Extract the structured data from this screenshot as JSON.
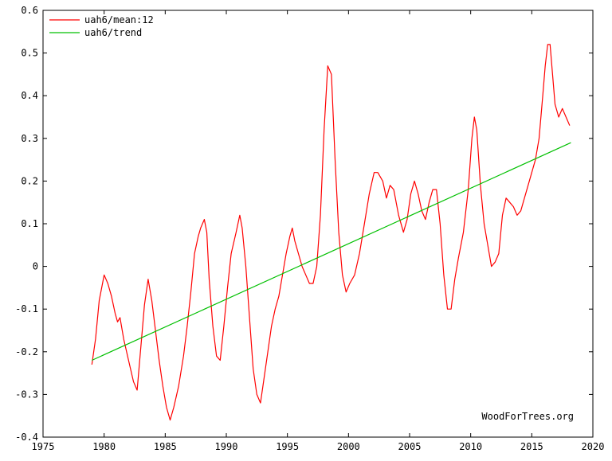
{
  "chart_data": {
    "type": "line",
    "title": "",
    "xlabel": "",
    "ylabel": "",
    "xlim": [
      1975,
      2020
    ],
    "ylim": [
      -0.4,
      0.6
    ],
    "x_ticks": [
      1975,
      1980,
      1985,
      1990,
      1995,
      2000,
      2005,
      2010,
      2015,
      2020
    ],
    "x_tick_labels": [
      "1975",
      "1980",
      "1985",
      "1990",
      "1995",
      "2000",
      "2005",
      "2010",
      "2015",
      "2020"
    ],
    "y_ticks": [
      -0.4,
      -0.3,
      -0.2,
      -0.1,
      0,
      0.1,
      0.2,
      0.3,
      0.4,
      0.5,
      0.6
    ],
    "y_tick_labels": [
      "-0.4",
      "-0.3",
      "-0.2",
      "-0.1",
      "0",
      "0.1",
      "0.2",
      "0.3",
      "0.4",
      "0.5",
      "0.6"
    ],
    "legend_position": "top-left",
    "series": [
      {
        "name": "uah6/mean:12",
        "color": "#ff0000",
        "points": [
          [
            1979.0,
            -0.23
          ],
          [
            1979.3,
            -0.17
          ],
          [
            1979.6,
            -0.08
          ],
          [
            1980.0,
            -0.02
          ],
          [
            1980.3,
            -0.04
          ],
          [
            1980.6,
            -0.07
          ],
          [
            1980.9,
            -0.11
          ],
          [
            1981.1,
            -0.13
          ],
          [
            1981.3,
            -0.12
          ],
          [
            1981.6,
            -0.17
          ],
          [
            1982.0,
            -0.22
          ],
          [
            1982.4,
            -0.27
          ],
          [
            1982.7,
            -0.29
          ],
          [
            1983.0,
            -0.19
          ],
          [
            1983.3,
            -0.09
          ],
          [
            1983.6,
            -0.03
          ],
          [
            1983.9,
            -0.08
          ],
          [
            1984.2,
            -0.15
          ],
          [
            1984.5,
            -0.22
          ],
          [
            1984.8,
            -0.28
          ],
          [
            1985.1,
            -0.33
          ],
          [
            1985.4,
            -0.36
          ],
          [
            1985.7,
            -0.33
          ],
          [
            1986.1,
            -0.28
          ],
          [
            1986.5,
            -0.21
          ],
          [
            1986.8,
            -0.14
          ],
          [
            1987.1,
            -0.06
          ],
          [
            1987.4,
            0.03
          ],
          [
            1987.7,
            0.07
          ],
          [
            1987.9,
            0.09
          ],
          [
            1988.2,
            0.11
          ],
          [
            1988.4,
            0.08
          ],
          [
            1988.6,
            -0.03
          ],
          [
            1988.9,
            -0.14
          ],
          [
            1989.2,
            -0.21
          ],
          [
            1989.5,
            -0.22
          ],
          [
            1989.8,
            -0.14
          ],
          [
            1990.1,
            -0.05
          ],
          [
            1990.4,
            0.03
          ],
          [
            1990.8,
            0.08
          ],
          [
            1991.1,
            0.12
          ],
          [
            1991.3,
            0.09
          ],
          [
            1991.6,
            0.0
          ],
          [
            1991.9,
            -0.12
          ],
          [
            1992.2,
            -0.24
          ],
          [
            1992.5,
            -0.3
          ],
          [
            1992.8,
            -0.32
          ],
          [
            1993.1,
            -0.26
          ],
          [
            1993.4,
            -0.2
          ],
          [
            1993.7,
            -0.14
          ],
          [
            1994.0,
            -0.1
          ],
          [
            1994.3,
            -0.07
          ],
          [
            1994.6,
            -0.02
          ],
          [
            1994.9,
            0.03
          ],
          [
            1995.2,
            0.07
          ],
          [
            1995.4,
            0.09
          ],
          [
            1995.6,
            0.06
          ],
          [
            1995.9,
            0.03
          ],
          [
            1996.2,
            0.0
          ],
          [
            1996.5,
            -0.02
          ],
          [
            1996.8,
            -0.04
          ],
          [
            1997.1,
            -0.04
          ],
          [
            1997.4,
            0.0
          ],
          [
            1997.7,
            0.12
          ],
          [
            1998.0,
            0.32
          ],
          [
            1998.3,
            0.47
          ],
          [
            1998.6,
            0.45
          ],
          [
            1998.9,
            0.25
          ],
          [
            1999.2,
            0.08
          ],
          [
            1999.5,
            -0.02
          ],
          [
            1999.8,
            -0.06
          ],
          [
            2000.1,
            -0.04
          ],
          [
            2000.5,
            -0.02
          ],
          [
            2000.9,
            0.03
          ],
          [
            2001.3,
            0.1
          ],
          [
            2001.7,
            0.17
          ],
          [
            2002.1,
            0.22
          ],
          [
            2002.4,
            0.22
          ],
          [
            2002.8,
            0.2
          ],
          [
            2003.1,
            0.16
          ],
          [
            2003.4,
            0.19
          ],
          [
            2003.7,
            0.18
          ],
          [
            2004.1,
            0.12
          ],
          [
            2004.5,
            0.08
          ],
          [
            2004.8,
            0.11
          ],
          [
            2005.1,
            0.17
          ],
          [
            2005.4,
            0.2
          ],
          [
            2005.7,
            0.17
          ],
          [
            2006.0,
            0.13
          ],
          [
            2006.3,
            0.11
          ],
          [
            2006.6,
            0.15
          ],
          [
            2006.9,
            0.18
          ],
          [
            2007.2,
            0.18
          ],
          [
            2007.5,
            0.1
          ],
          [
            2007.8,
            -0.02
          ],
          [
            2008.1,
            -0.1
          ],
          [
            2008.4,
            -0.1
          ],
          [
            2008.7,
            -0.03
          ],
          [
            2009.0,
            0.02
          ],
          [
            2009.4,
            0.08
          ],
          [
            2009.8,
            0.18
          ],
          [
            2010.1,
            0.3
          ],
          [
            2010.3,
            0.35
          ],
          [
            2010.5,
            0.32
          ],
          [
            2010.8,
            0.19
          ],
          [
            2011.1,
            0.1
          ],
          [
            2011.4,
            0.05
          ],
          [
            2011.7,
            0.0
          ],
          [
            2012.0,
            0.01
          ],
          [
            2012.3,
            0.03
          ],
          [
            2012.6,
            0.12
          ],
          [
            2012.9,
            0.16
          ],
          [
            2013.2,
            0.15
          ],
          [
            2013.5,
            0.14
          ],
          [
            2013.8,
            0.12
          ],
          [
            2014.1,
            0.13
          ],
          [
            2014.4,
            0.16
          ],
          [
            2014.7,
            0.19
          ],
          [
            2015.0,
            0.22
          ],
          [
            2015.3,
            0.25
          ],
          [
            2015.6,
            0.3
          ],
          [
            2015.9,
            0.4
          ],
          [
            2016.1,
            0.47
          ],
          [
            2016.3,
            0.52
          ],
          [
            2016.5,
            0.52
          ],
          [
            2016.7,
            0.45
          ],
          [
            2016.9,
            0.38
          ],
          [
            2017.2,
            0.35
          ],
          [
            2017.5,
            0.37
          ],
          [
            2017.8,
            0.35
          ],
          [
            2018.1,
            0.33
          ]
        ]
      },
      {
        "name": "uah6/trend",
        "color": "#00c000",
        "points": [
          [
            1979.0,
            -0.22
          ],
          [
            2018.2,
            0.29
          ]
        ]
      }
    ],
    "watermark": "WoodForTrees.org"
  }
}
